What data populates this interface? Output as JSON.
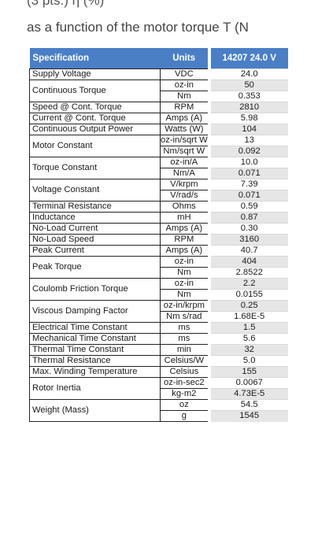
{
  "header": {
    "line1": "(3 pts.) η (%)",
    "line2": "as a function of the motor torque T (N"
  },
  "table": {
    "col_spec": "Specification",
    "col_units": "Units",
    "col_value": "14207 24.0 V",
    "groups": [
      {
        "spec": "Supply Voltage",
        "rows": [
          [
            "VDC",
            "24.0"
          ]
        ]
      },
      {
        "spec": "Continuous Torque",
        "rows": [
          [
            "oz-in",
            "50"
          ],
          [
            "Nm",
            "0.353"
          ]
        ]
      },
      {
        "spec": "Speed @ Cont. Torque",
        "rows": [
          [
            "RPM",
            "2810"
          ]
        ]
      },
      {
        "spec": "Current @ Cont. Torque",
        "rows": [
          [
            "Amps (A)",
            "5.98"
          ]
        ]
      },
      {
        "spec": "Continuous Output Power",
        "rows": [
          [
            "Watts (W)",
            "104"
          ]
        ]
      },
      {
        "spec": "Motor Constant",
        "rows": [
          [
            "oz-in/sqrt W",
            "13"
          ],
          [
            "Nm/sqrt W",
            "0.092"
          ]
        ]
      },
      {
        "spec": "Torque Constant",
        "rows": [
          [
            "oz-in/A",
            "10.0"
          ],
          [
            "Nm/A",
            "0.071"
          ]
        ]
      },
      {
        "spec": "Voltage Constant",
        "rows": [
          [
            "V/krpm",
            "7.39"
          ],
          [
            "V/rad/s",
            "0.071"
          ]
        ]
      },
      {
        "spec": "Terminal Resistance",
        "rows": [
          [
            "Ohms",
            "0.59"
          ]
        ]
      },
      {
        "spec": "Inductance",
        "rows": [
          [
            "mH",
            "0.87"
          ]
        ]
      },
      {
        "spec": "No-Load Current",
        "rows": [
          [
            "Amps (A)",
            "0.30"
          ]
        ]
      },
      {
        "spec": "No-Load Speed",
        "rows": [
          [
            "RPM",
            "3160"
          ]
        ]
      },
      {
        "spec": "Peak Current",
        "rows": [
          [
            "Amps (A)",
            "40.7"
          ]
        ]
      },
      {
        "spec": "Peak Torque",
        "rows": [
          [
            "oz-in",
            "404"
          ],
          [
            "Nm",
            "2.8522"
          ]
        ]
      },
      {
        "spec": "Coulomb Friction Torque",
        "rows": [
          [
            "oz-in",
            "2.2"
          ],
          [
            "Nm",
            "0.0155"
          ]
        ]
      },
      {
        "spec": "Viscous Damping Factor",
        "rows": [
          [
            "oz-in/krpm",
            "0.25"
          ],
          [
            "Nm s/rad",
            "1.68E-5"
          ]
        ]
      },
      {
        "spec": "Electrical Time Constant",
        "rows": [
          [
            "ms",
            "1.5"
          ]
        ]
      },
      {
        "spec": "Mechanical Time Constant",
        "rows": [
          [
            "ms",
            "5.6"
          ]
        ]
      },
      {
        "spec": "Thermal Time Constant",
        "rows": [
          [
            "min",
            "32"
          ]
        ]
      },
      {
        "spec": "Thermal Resistance",
        "rows": [
          [
            "Celsius/W",
            "5.0"
          ]
        ]
      },
      {
        "spec": "Max. Winding Temperature",
        "rows": [
          [
            "Celsius",
            "155"
          ]
        ]
      },
      {
        "spec": "Rotor Inertia",
        "rows": [
          [
            "oz-in-sec2",
            "0.0067"
          ],
          [
            "kg-m2",
            "4.73E-5"
          ]
        ]
      },
      {
        "spec": "Weight (Mass)",
        "rows": [
          [
            "oz",
            "54.5"
          ],
          [
            "g",
            "1545"
          ]
        ]
      }
    ]
  }
}
